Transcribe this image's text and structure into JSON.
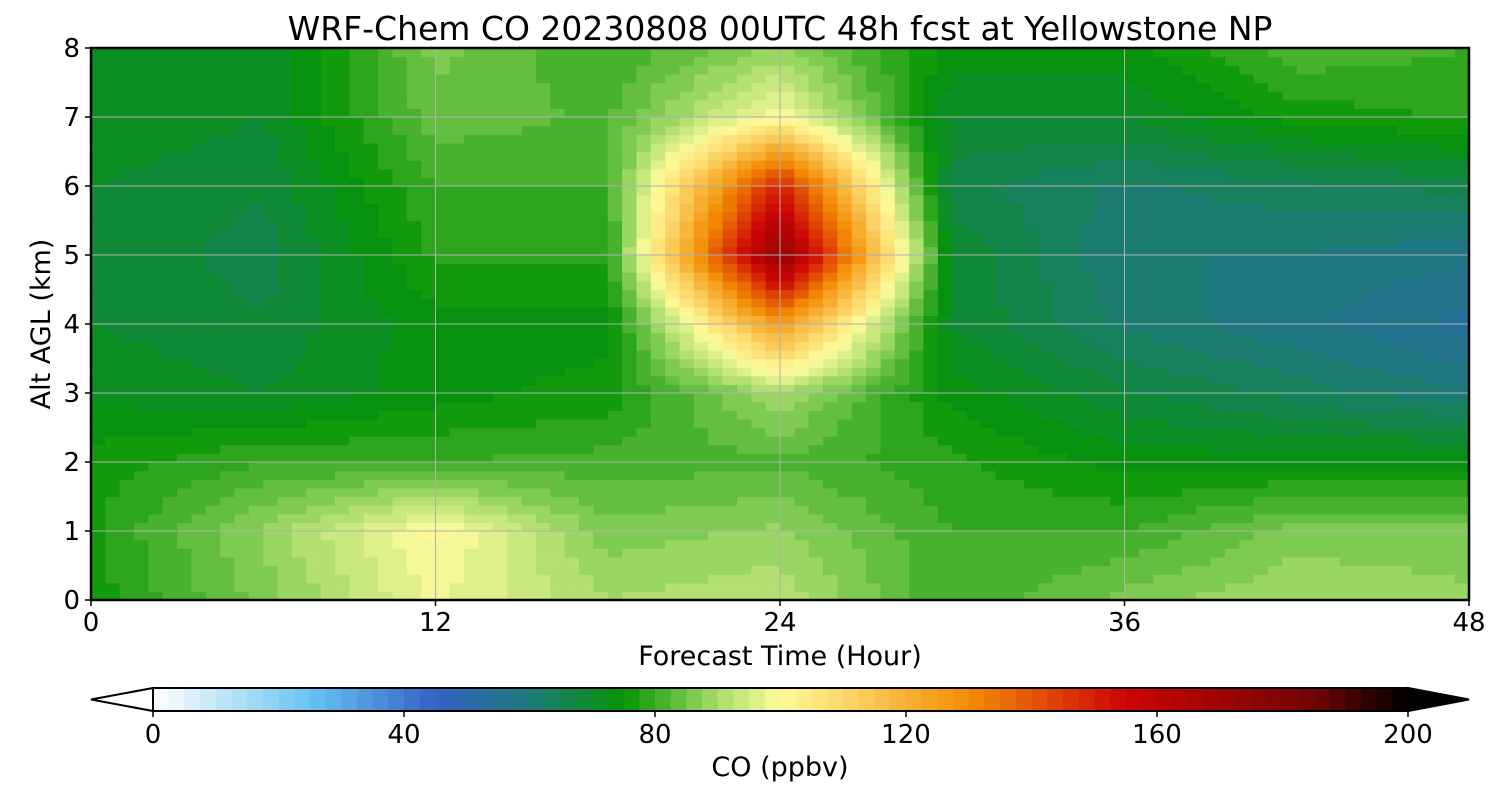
{
  "chart_data": {
    "type": "heatmap",
    "title": "WRF-Chem CO  20230808 00UTC 48h fcst at Yellowstone NP",
    "xlabel": "Forecast Time (Hour)",
    "ylabel": "Alt AGL (km)",
    "xlim": [
      0,
      48
    ],
    "ylim": [
      0,
      8
    ],
    "x_ticks": [
      0,
      12,
      24,
      36,
      48
    ],
    "y_ticks": [
      0,
      1,
      2,
      3,
      4,
      5,
      6,
      7,
      8
    ],
    "grid": true,
    "field": {
      "x": [
        0,
        6,
        12,
        18,
        24,
        30,
        36,
        42,
        48
      ],
      "y": [
        0,
        1,
        2,
        3,
        4,
        5,
        6,
        7,
        8
      ],
      "z": [
        [
          76,
          86,
          98,
          90,
          92,
          80,
          86,
          90,
          88
        ],
        [
          77,
          88,
          101,
          86,
          88,
          80,
          80,
          86,
          86
        ],
        [
          76,
          80,
          80,
          81,
          82,
          78,
          74,
          74,
          74
        ],
        [
          72,
          70,
          74,
          76,
          90,
          74,
          68,
          64,
          60
        ],
        [
          70,
          68,
          74,
          74,
          126,
          70,
          62,
          58,
          54
        ],
        [
          70,
          66,
          78,
          78,
          175,
          70,
          60,
          60,
          58
        ],
        [
          70,
          68,
          80,
          80,
          150,
          66,
          62,
          64,
          66
        ],
        [
          72,
          70,
          84,
          82,
          100,
          70,
          70,
          76,
          78
        ],
        [
          72,
          70,
          86,
          80,
          88,
          74,
          74,
          82,
          80
        ]
      ],
      "z_unit": "ppbv"
    },
    "colorbar": {
      "label": "CO  (ppbv)",
      "min": 0,
      "max": 200,
      "step": 2.5,
      "ticks": [
        0,
        40,
        80,
        120,
        160,
        200
      ],
      "extend": "both",
      "colors": [
        {
          "v": 0,
          "c": "#ffffff"
        },
        {
          "v": 15,
          "c": "#a8dcf4"
        },
        {
          "v": 25,
          "c": "#68c4f4"
        },
        {
          "v": 45,
          "c": "#3462c4"
        },
        {
          "v": 60,
          "c": "#1e7a7c"
        },
        {
          "v": 75,
          "c": "#049404"
        },
        {
          "v": 90,
          "c": "#a8dc6a"
        },
        {
          "v": 100,
          "c": "#fffc9c"
        },
        {
          "v": 130,
          "c": "#f48c04"
        },
        {
          "v": 155,
          "c": "#cc0404"
        },
        {
          "v": 185,
          "c": "#700404"
        },
        {
          "v": 200,
          "c": "#000000"
        }
      ]
    }
  }
}
